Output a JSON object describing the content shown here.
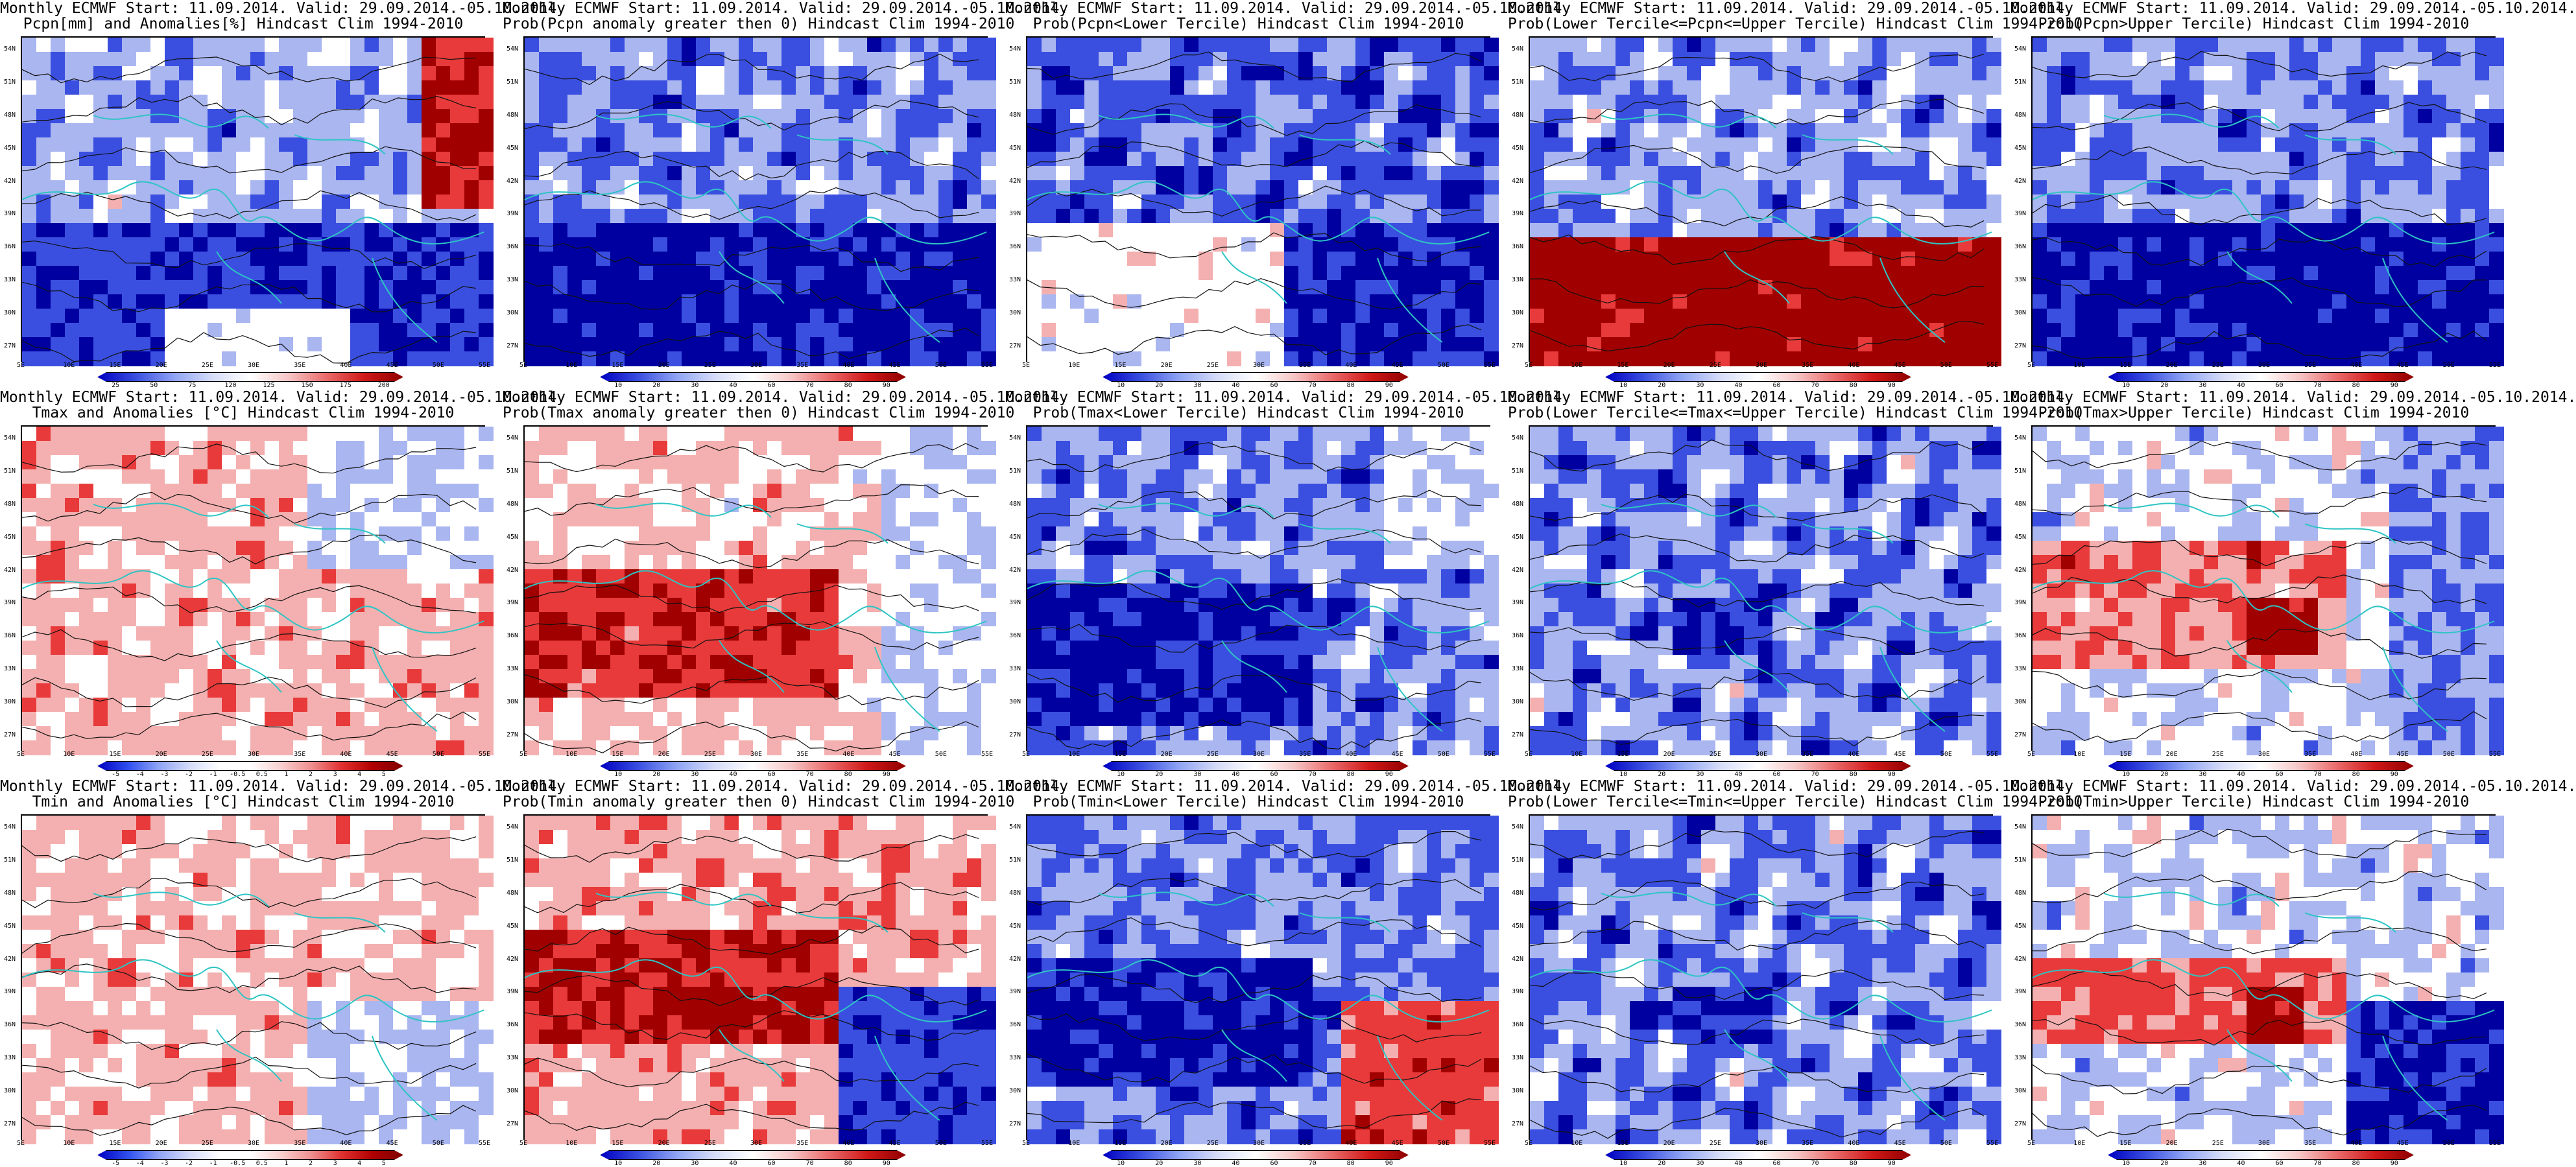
{
  "figure": {
    "rows": [
      {
        "variable": "Pcpn",
        "panels": [
          {
            "title_line1": "Monthly ECMWF Start: 11.09.2014. Valid: 29.09.2014.-05.10.2014.",
            "title_line2": "Pcpn[mm] and Anomalies[%] Hindcast Clim 1994-2010",
            "colorbar": {
              "type": "anomaly_precip",
              "labels": [
                "25",
                "50",
                "75",
                "120",
                "125",
                "150",
                "175",
                "200"
              ]
            },
            "field": "pcpn_anom"
          },
          {
            "title_line1": "Monthly ECMWF Start: 11.09.2014. Valid: 29.09.2014.-05.10.2014.",
            "title_line2": "Prob(Pcpn anomaly greater then 0) Hindcast Clim 1994-2010",
            "colorbar": {
              "type": "prob",
              "labels": [
                "10",
                "20",
                "30",
                "40",
                "60",
                "70",
                "80",
                "90"
              ]
            },
            "field": "prob_low"
          },
          {
            "title_line1": "Monthly ECMWF Start: 11.09.2014. Valid: 29.09.2014.-05.10.2014.",
            "title_line2": "Prob(Pcpn<Lower Tercile) Hindcast Clim 1994-2010",
            "colorbar": {
              "type": "prob",
              "labels": [
                "10",
                "20",
                "30",
                "40",
                "60",
                "70",
                "80",
                "90"
              ]
            },
            "field": "prob_south_white"
          },
          {
            "title_line1": "Monthly ECMWF Start: 11.09.2014. Valid: 29.09.2014.-05.10.2014.",
            "title_line2": "Prob(Lower Tercile<=Pcpn<=Upper Tercile) Hindcast Clim 1994-2010",
            "colorbar": {
              "type": "prob",
              "labels": [
                "10",
                "20",
                "30",
                "40",
                "60",
                "70",
                "80",
                "90"
              ]
            },
            "field": "prob_south_red"
          },
          {
            "title_line1": "Monthly ECMWF Start: 11.09.2014. Valid: 29.09.2014.-05.10.2014.",
            "title_line2": "Prob(Pcpn>Upper Tercile) Hindcast Clim 1994-2010",
            "colorbar": {
              "type": "prob",
              "labels": [
                "10",
                "20",
                "30",
                "40",
                "60",
                "70",
                "80",
                "90"
              ]
            },
            "field": "prob_low"
          }
        ]
      },
      {
        "variable": "Tmax",
        "panels": [
          {
            "title_line1": "Monthly ECMWF Start: 11.09.2014. Valid: 29.09.2014.-05.10.2014.",
            "title_line2": "Tmax and Anomalies [°C] Hindcast Clim 1994-2010",
            "colorbar": {
              "type": "anomaly_temp",
              "labels": [
                "-5",
                "-4",
                "-3",
                "-2",
                "-1",
                "-0.5",
                "0.5",
                "1",
                "2",
                "3",
                "4",
                "5"
              ]
            },
            "field": "temp_anom_warm"
          },
          {
            "title_line1": "Monthly ECMWF Start: 11.09.2014. Valid: 29.09.2014.-05.10.2014.",
            "title_line2": "Prob(Tmax anomaly greater then 0) Hindcast Clim 1994-2010",
            "colorbar": {
              "type": "prob",
              "labels": [
                "10",
                "20",
                "30",
                "40",
                "60",
                "70",
                "80",
                "90"
              ]
            },
            "field": "prob_warm_south"
          },
          {
            "title_line1": "Monthly ECMWF Start: 11.09.2014. Valid: 29.09.2014.-05.10.2014.",
            "title_line2": "Prob(Tmax<Lower Tercile) Hindcast Clim 1994-2010",
            "colorbar": {
              "type": "prob",
              "labels": [
                "10",
                "20",
                "30",
                "40",
                "60",
                "70",
                "80",
                "90"
              ]
            },
            "field": "prob_blue_south"
          },
          {
            "title_line1": "Monthly ECMWF Start: 11.09.2014. Valid: 29.09.2014.-05.10.2014.",
            "title_line2": "Prob(Lower Tercile<=Tmax<=Upper Tercile) Hindcast Clim 1994-2010",
            "colorbar": {
              "type": "prob",
              "labels": [
                "10",
                "20",
                "30",
                "40",
                "60",
                "70",
                "80",
                "90"
              ]
            },
            "field": "prob_mixed_blue"
          },
          {
            "title_line1": "Monthly ECMWF Start: 11.09.2014. Valid: 29.09.2014.-05.10.2014.",
            "title_line2": "Prob(Tmax>Upper Tercile) Hindcast Clim 1994-2010",
            "colorbar": {
              "type": "prob",
              "labels": [
                "10",
                "20",
                "30",
                "40",
                "60",
                "70",
                "80",
                "90"
              ]
            },
            "field": "prob_warm_patch"
          }
        ]
      },
      {
        "variable": "Tmin",
        "panels": [
          {
            "title_line1": "Monthly ECMWF Start: 11.09.2014. Valid: 29.09.2014.-05.10.2014.",
            "title_line2": "Tmin and Anomalies [°C] Hindcast Clim 1994-2010",
            "colorbar": {
              "type": "anomaly_temp",
              "labels": [
                "-5",
                "-4",
                "-3",
                "-2",
                "-1",
                "-0.5",
                "0.5",
                "1",
                "2",
                "3",
                "4",
                "5"
              ]
            },
            "field": "temp_anom_mixed"
          },
          {
            "title_line1": "Monthly ECMWF Start: 11.09.2014. Valid: 29.09.2014.-05.10.2014.",
            "title_line2": "Prob(Tmin anomaly greater then 0) Hindcast Clim 1994-2010",
            "colorbar": {
              "type": "prob",
              "labels": [
                "10",
                "20",
                "30",
                "40",
                "60",
                "70",
                "80",
                "90"
              ]
            },
            "field": "prob_warm_south_east_blue"
          },
          {
            "title_line1": "Monthly ECMWF Start: 11.09.2014. Valid: 29.09.2014.-05.10.2014.",
            "title_line2": "Prob(Tmin<Lower Tercile) Hindcast Clim 1994-2010",
            "colorbar": {
              "type": "prob",
              "labels": [
                "10",
                "20",
                "30",
                "40",
                "60",
                "70",
                "80",
                "90"
              ]
            },
            "field": "prob_blue_south_east_red"
          },
          {
            "title_line1": "Monthly ECMWF Start: 11.09.2014. Valid: 29.09.2014.-05.10.2014.",
            "title_line2": "Prob(Lower Tercile<=Tmin<=Upper Tercile) Hindcast Clim 1994-2010",
            "colorbar": {
              "type": "prob",
              "labels": [
                "10",
                "20",
                "30",
                "40",
                "60",
                "70",
                "80",
                "90"
              ]
            },
            "field": "prob_mixed_blue"
          },
          {
            "title_line1": "Monthly ECMWF Start: 11.09.2014. Valid: 29.09.2014.-05.10.2014.",
            "title_line2": "Prob(Tmin>Upper Tercile) Hindcast Clim 1994-2010",
            "colorbar": {
              "type": "prob",
              "labels": [
                "10",
                "20",
                "30",
                "40",
                "60",
                "70",
                "80",
                "90"
              ]
            },
            "field": "prob_warm_patch_blue"
          }
        ]
      }
    ],
    "lat_ticks": [
      "54N",
      "51N",
      "48N",
      "45N",
      "42N",
      "39N",
      "36N",
      "33N",
      "30N",
      "27N"
    ],
    "lon_ticks": [
      "5E",
      "10E",
      "15E",
      "20E",
      "25E",
      "30E",
      "35E",
      "40E",
      "45E",
      "50E",
      "55E"
    ],
    "colors": {
      "coast": "#2ec4c4",
      "contour": "#111111",
      "blue_dark": "#0000a0",
      "blue_mid": "#3a4fe0",
      "blue_light": "#aab6f0",
      "white": "#ffffff",
      "red_light": "#f4b0b0",
      "red_mid": "#e83a3a",
      "red_dark": "#a00000"
    }
  }
}
